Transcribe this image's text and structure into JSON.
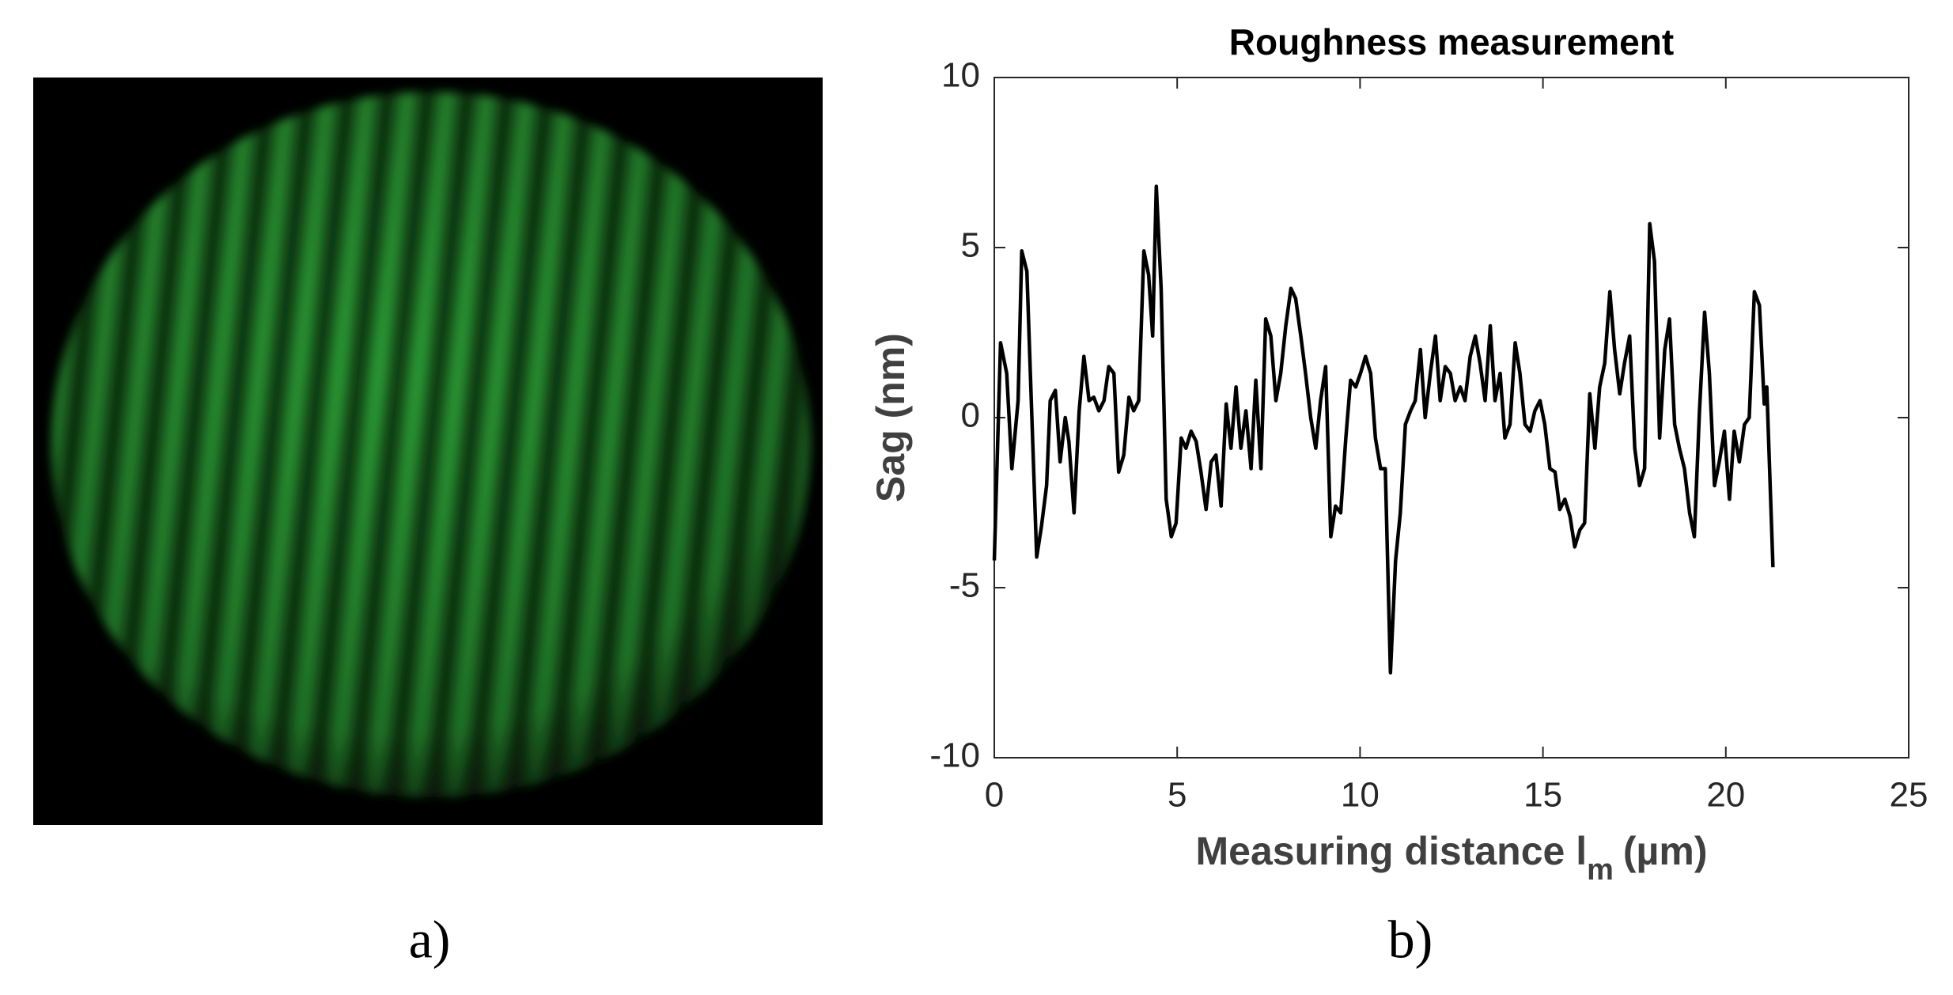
{
  "panel_labels": [
    "a)",
    "b)"
  ],
  "chart_data": {
    "type": "line",
    "title": "Roughness measurement",
    "x_label": {
      "main": "Measuring distance l",
      "subscript": "m",
      "unit": "(µm)"
    },
    "y_label": "Sag (nm)",
    "xlim": [
      0,
      25
    ],
    "xticks": [
      0,
      5,
      10,
      15,
      20,
      25
    ],
    "ylim": [
      -10,
      10
    ],
    "yticks": [
      -10,
      -5,
      0,
      5,
      10
    ],
    "color": "#000000",
    "x": [
      0,
      0.17,
      0.34,
      0.48,
      0.65,
      0.75,
      0.89,
      1.02,
      1.16,
      1.29,
      1.43,
      1.53,
      1.67,
      1.8,
      1.94,
      2.04,
      2.18,
      2.32,
      2.45,
      2.59,
      2.72,
      2.86,
      3.0,
      3.13,
      3.27,
      3.4,
      3.54,
      3.68,
      3.81,
      3.95,
      4.09,
      4.22,
      4.33,
      4.43,
      4.56,
      4.7,
      4.84,
      4.97,
      5.11,
      5.24,
      5.38,
      5.52,
      5.65,
      5.79,
      5.93,
      6.06,
      6.2,
      6.34,
      6.47,
      6.61,
      6.74,
      6.88,
      7.02,
      7.15,
      7.29,
      7.42,
      7.56,
      7.7,
      7.83,
      7.97,
      8.11,
      8.24,
      8.38,
      8.51,
      8.65,
      8.79,
      8.92,
      9.06,
      9.2,
      9.33,
      9.47,
      9.61,
      9.74,
      9.88,
      10.01,
      10.15,
      10.29,
      10.42,
      10.56,
      10.69,
      10.83,
      10.97,
      11.1,
      11.24,
      11.38,
      11.51,
      11.65,
      11.78,
      11.92,
      12.06,
      12.19,
      12.33,
      12.47,
      12.6,
      12.74,
      12.87,
      13.01,
      13.15,
      13.28,
      13.42,
      13.56,
      13.69,
      13.83,
      13.96,
      14.1,
      14.24,
      14.37,
      14.51,
      14.65,
      14.78,
      14.92,
      15.05,
      15.19,
      15.33,
      15.46,
      15.6,
      15.74,
      15.87,
      16.01,
      16.14,
      16.28,
      16.42,
      16.55,
      16.69,
      16.83,
      16.96,
      17.1,
      17.23,
      17.37,
      17.51,
      17.64,
      17.78,
      17.92,
      18.05,
      18.19,
      18.33,
      18.46,
      18.6,
      18.73,
      18.87,
      19.01,
      19.14,
      19.28,
      19.42,
      19.55,
      19.69,
      19.82,
      19.96,
      20.1,
      20.23,
      20.37,
      20.51,
      20.64,
      20.78,
      20.92,
      21.05,
      21.12,
      21.29
    ],
    "values": [
      -4.2,
      2.2,
      1.3,
      -1.5,
      0.5,
      4.9,
      4.3,
      0.2,
      -4.1,
      -3.2,
      -2,
      0.5,
      0.8,
      -1.3,
      0,
      -0.7,
      -2.8,
      0.2,
      1.8,
      0.5,
      0.6,
      0.2,
      0.5,
      1.5,
      1.3,
      -1.6,
      -1.1,
      0.6,
      0.2,
      0.5,
      4.9,
      4.2,
      2.4,
      6.8,
      3.8,
      -2.4,
      -3.5,
      -3.1,
      -0.6,
      -0.9,
      -0.4,
      -0.7,
      -1.6,
      -2.7,
      -1.3,
      -1.1,
      -2.6,
      0.4,
      -0.9,
      0.9,
      -0.9,
      0.2,
      -1.5,
      1.1,
      -1.5,
      2.9,
      2.4,
      0.5,
      1.3,
      2.7,
      3.8,
      3.5,
      2.4,
      1.3,
      0,
      -0.9,
      0.5,
      1.5,
      -3.5,
      -2.6,
      -2.8,
      -0.6,
      1.1,
      0.9,
      1.3,
      1.8,
      1.3,
      -0.6,
      -1.5,
      -1.5,
      -7.5,
      -4.2,
      -2.8,
      -0.2,
      0.2,
      0.5,
      2.0,
      0,
      1.3,
      2.4,
      0.5,
      1.5,
      1.3,
      0.5,
      0.9,
      0.5,
      1.8,
      2.4,
      1.6,
      0.5,
      2.7,
      0.5,
      1.3,
      -0.6,
      -0.2,
      2.2,
      1.3,
      -0.2,
      -0.4,
      0.2,
      0.5,
      -0.2,
      -1.5,
      -1.6,
      -2.7,
      -2.4,
      -2.9,
      -3.8,
      -3.3,
      -3.1,
      0.7,
      -0.9,
      0.9,
      1.6,
      3.7,
      2.0,
      0.7,
      1.6,
      2.4,
      -0.9,
      -2.0,
      -1.5,
      5.7,
      4.6,
      -0.6,
      2.0,
      2.9,
      -0.2,
      -0.9,
      -1.5,
      -2.8,
      -3.5,
      0.2,
      3.1,
      1.3,
      -2.0,
      -1.3,
      -0.4,
      -2.4,
      -0.4,
      -1.3,
      -0.2,
      0,
      3.7,
      3.3,
      0.4,
      0.9,
      -4.4
    ]
  }
}
